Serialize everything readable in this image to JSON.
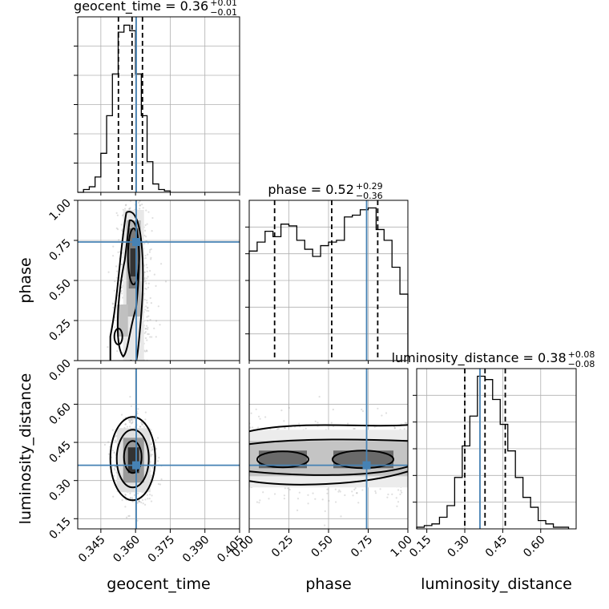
{
  "chart_data": {
    "type": "corner",
    "parameters": [
      {
        "key": "geocent_time",
        "label": "geocent_time",
        "range": [
          0.335,
          0.405
        ],
        "ticks": [
          "0.345",
          "0.360",
          "0.375",
          "0.390",
          "0.405"
        ],
        "tick_values": [
          0.345,
          0.36,
          0.375,
          0.39,
          0.405
        ],
        "median": 0.36,
        "plus": "+0.01",
        "minus": "−0.01",
        "title_prefix": "geocent_time = 0.36",
        "quantiles": [
          0.3526,
          0.3585,
          0.363
        ],
        "truth": 0.3603
      },
      {
        "key": "phase",
        "label": "phase",
        "range": [
          0.0,
          1.0
        ],
        "ticks": [
          "0.00",
          "0.25",
          "0.50",
          "0.75",
          "1.00"
        ],
        "tick_values": [
          0,
          0.25,
          0.5,
          0.75,
          1.0
        ],
        "median": 0.52,
        "plus": "+0.29",
        "minus": "−0.36",
        "title_prefix": "phase = 0.52",
        "quantiles": [
          0.16,
          0.52,
          0.81
        ],
        "truth": 0.74
      },
      {
        "key": "luminosity_distance",
        "label": "luminosity_distance",
        "range": [
          0.11,
          0.74
        ],
        "ticks": [
          "0.15",
          "0.30",
          "0.45",
          "0.60"
        ],
        "tick_values": [
          0.15,
          0.3,
          0.45,
          0.6
        ],
        "median": 0.38,
        "plus": "+0.08",
        "minus": "−0.08",
        "title_prefix": "luminosity_distance = 0.38",
        "quantiles": [
          0.3,
          0.38,
          0.46
        ],
        "truth": 0.36
      }
    ],
    "histograms": {
      "geocent_time": {
        "bins": [
          0.335,
          0.3375,
          0.34,
          0.3425,
          0.345,
          0.3475,
          0.35,
          0.3525,
          0.355,
          0.3575,
          0.36,
          0.3625,
          0.365,
          0.3675,
          0.37,
          0.3725,
          0.375
        ],
        "counts": [
          0,
          2,
          4,
          11,
          28,
          55,
          85,
          115,
          120,
          116,
          85,
          55,
          22,
          6,
          2,
          1
        ]
      },
      "phase": {
        "bins": [
          0,
          0.05,
          0.1,
          0.15,
          0.2,
          0.25,
          0.3,
          0.35,
          0.4,
          0.45,
          0.5,
          0.55,
          0.6,
          0.65,
          0.7,
          0.75,
          0.8,
          0.85,
          0.9,
          0.95,
          1.0
        ],
        "counts": [
          61,
          66,
          72,
          69,
          76,
          75,
          67,
          62,
          58,
          64,
          66,
          67,
          80,
          81,
          84,
          85,
          73,
          67,
          52,
          37
        ]
      },
      "luminosity_distance": {
        "bins": [
          0.11,
          0.14,
          0.17,
          0.2,
          0.23,
          0.26,
          0.29,
          0.32,
          0.35,
          0.38,
          0.41,
          0.44,
          0.47,
          0.5,
          0.53,
          0.56,
          0.59,
          0.62,
          0.65,
          0.68,
          0.71
        ],
        "counts": [
          1,
          2,
          3,
          7,
          14,
          31,
          50,
          68,
          92,
          90,
          78,
          63,
          47,
          31,
          19,
          13,
          5,
          3,
          1,
          1
        ]
      }
    }
  }
}
